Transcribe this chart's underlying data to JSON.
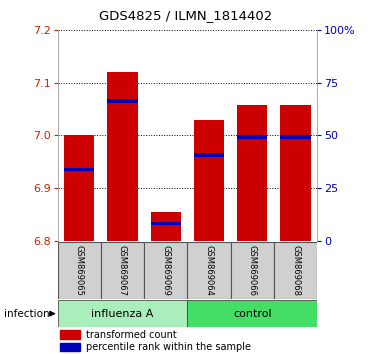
{
  "title": "GDS4825 / ILMN_1814402",
  "samples": [
    "GSM869065",
    "GSM869067",
    "GSM869069",
    "GSM869064",
    "GSM869066",
    "GSM869068"
  ],
  "bar_bottom": 6.8,
  "bar_tops": [
    7.0,
    7.12,
    6.855,
    7.03,
    7.057,
    7.057
  ],
  "blue_marker_vals": [
    6.935,
    7.065,
    6.833,
    6.963,
    6.997,
    6.997
  ],
  "ylim": [
    6.8,
    7.2
  ],
  "y_ticks_left": [
    6.8,
    6.9,
    7.0,
    7.1,
    7.2
  ],
  "y2_ticks_pct": [
    0,
    25,
    50,
    75,
    100
  ],
  "y2_tick_labels": [
    "0",
    "25",
    "50",
    "75",
    "100%"
  ],
  "left_tick_color": "#CC2200",
  "right_tick_color": "#0000BB",
  "bar_color": "#CC0000",
  "blue_color": "#0000BB",
  "bar_width": 0.7,
  "influenza_color": "#AAEEBB",
  "control_color": "#44DD66",
  "sample_box_color": "#D0D0D0",
  "legend_red_label": "transformed count",
  "legend_blue_label": "percentile rank within the sample",
  "infection_label": "infection"
}
